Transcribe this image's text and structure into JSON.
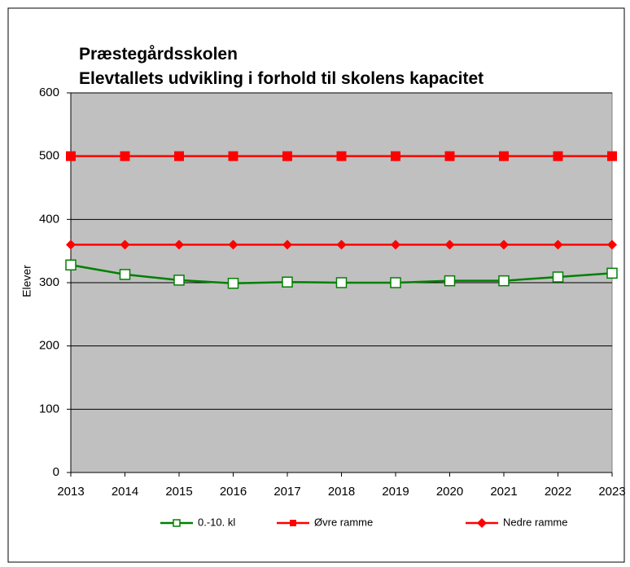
{
  "chart_data": {
    "type": "line",
    "title": [
      "Præstegårdsskolen",
      "Elevtallets udvikling i forhold til  skolens kapacitet"
    ],
    "y_label": "Elever",
    "categories": [
      "2013",
      "2014",
      "2015",
      "2016",
      "2017",
      "2018",
      "2019",
      "2020",
      "2021",
      "2022",
      "2023"
    ],
    "series": [
      {
        "name": "0.-10. kl",
        "color": "#008000",
        "marker": "square-open",
        "values": [
          328,
          313,
          304,
          299,
          301,
          300,
          300,
          303,
          303,
          309,
          315
        ]
      },
      {
        "name": "Øvre ramme",
        "color": "#ff0000",
        "marker": "square",
        "values": [
          500,
          500,
          500,
          500,
          500,
          500,
          500,
          500,
          500,
          500,
          500
        ]
      },
      {
        "name": "Nedre ramme",
        "color": "#ff0000",
        "marker": "diamond",
        "values": [
          360,
          360,
          360,
          360,
          360,
          360,
          360,
          360,
          360,
          360,
          360
        ]
      }
    ],
    "ylim": [
      0,
      600
    ],
    "yticks": [
      0,
      100,
      200,
      300,
      400,
      500,
      600
    ],
    "grid": true,
    "plot_background": "#c0c0c0",
    "legend": "bottom"
  }
}
